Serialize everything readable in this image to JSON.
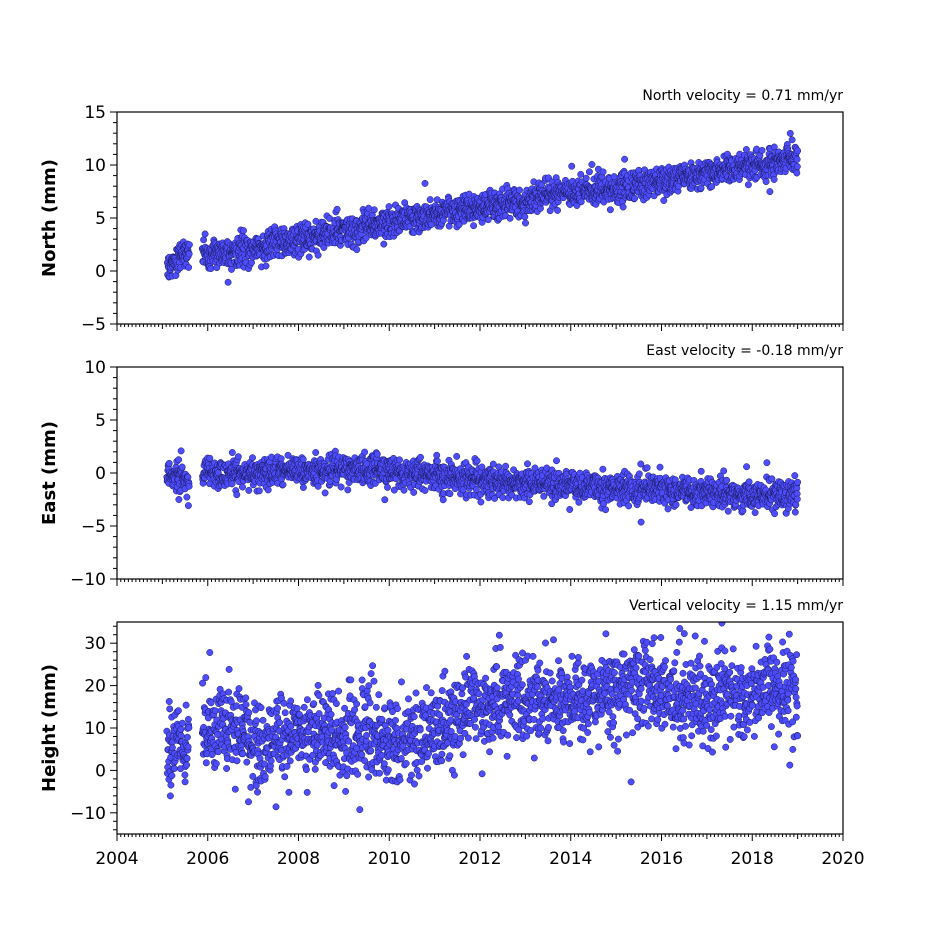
{
  "chart_data": [
    {
      "type": "scatter",
      "title": "North velocity = 0.71 mm/yr",
      "ylabel": "North (mm)",
      "xlim": [
        2004,
        2020
      ],
      "ylim": [
        -5,
        15
      ],
      "yticks": [
        -5,
        0,
        5,
        10,
        15
      ],
      "xticks": [
        2004,
        2006,
        2008,
        2010,
        2012,
        2014,
        2016,
        2018,
        2020
      ],
      "xtick_labels_shown": false,
      "color": "#4d4dff",
      "series": [
        {
          "x": [
            2005.1,
            2005.3,
            2005.5,
            2006.0,
            2006.5,
            2007.0,
            2007.5,
            2008.0,
            2008.5,
            2009.0,
            2009.5,
            2010.0,
            2010.5,
            2011.0,
            2011.5,
            2012.0,
            2012.5,
            2013.0,
            2013.5,
            2014.0,
            2014.5,
            2015.0,
            2015.5,
            2016.0,
            2016.5,
            2017.0,
            2017.5,
            2018.0,
            2018.5,
            2019.0
          ],
          "y": [
            0.2,
            1.0,
            1.8,
            1.5,
            1.8,
            2.2,
            2.6,
            3.0,
            3.4,
            3.8,
            4.2,
            4.6,
            5.0,
            5.3,
            5.7,
            6.0,
            6.4,
            6.7,
            7.0,
            7.3,
            7.6,
            7.9,
            8.2,
            8.5,
            8.9,
            9.2,
            9.6,
            10.0,
            10.4,
            10.7
          ],
          "spread": 0.9
        }
      ]
    },
    {
      "type": "scatter",
      "title": "East velocity = -0.18 mm/yr",
      "ylabel": "East (mm)",
      "xlim": [
        2004,
        2020
      ],
      "ylim": [
        -10,
        10
      ],
      "yticks": [
        -10,
        -5,
        0,
        5,
        10
      ],
      "xticks": [
        2004,
        2006,
        2008,
        2010,
        2012,
        2014,
        2016,
        2018,
        2020
      ],
      "xtick_labels_shown": false,
      "color": "#4d4dff",
      "series": [
        {
          "x": [
            2005.1,
            2005.3,
            2005.5,
            2006.0,
            2006.5,
            2007.0,
            2007.5,
            2008.0,
            2008.5,
            2009.0,
            2009.5,
            2010.0,
            2010.5,
            2011.0,
            2011.5,
            2012.0,
            2012.5,
            2013.0,
            2013.5,
            2014.0,
            2014.5,
            2015.0,
            2015.5,
            2016.0,
            2016.5,
            2017.0,
            2017.5,
            2018.0,
            2018.5,
            2019.0
          ],
          "y": [
            -0.2,
            -0.3,
            -0.4,
            0.0,
            0.0,
            0.0,
            0.1,
            0.2,
            0.2,
            0.3,
            0.3,
            0.2,
            0.0,
            -0.2,
            -0.4,
            -0.6,
            -0.8,
            -0.9,
            -1.0,
            -1.2,
            -1.3,
            -1.4,
            -1.5,
            -1.6,
            -1.7,
            -1.8,
            -1.9,
            -2.0,
            -2.0,
            -1.9
          ],
          "spread": 0.9
        }
      ]
    },
    {
      "type": "scatter",
      "title": "Vertical velocity = 1.15 mm/yr",
      "ylabel": "Height (mm)",
      "xlim": [
        2004,
        2020
      ],
      "ylim": [
        -15,
        35
      ],
      "yticks": [
        -10,
        0,
        10,
        20,
        30
      ],
      "xticks": [
        2004,
        2006,
        2008,
        2010,
        2012,
        2014,
        2016,
        2018,
        2020
      ],
      "xtick_labels_shown": true,
      "color": "#4d4dff",
      "series": [
        {
          "x": [
            2005.1,
            2005.3,
            2005.5,
            2006.0,
            2006.5,
            2007.0,
            2007.5,
            2008.0,
            2008.5,
            2009.0,
            2009.5,
            2010.0,
            2010.5,
            2011.0,
            2011.5,
            2012.0,
            2012.5,
            2013.0,
            2013.5,
            2014.0,
            2014.5,
            2015.0,
            2015.5,
            2016.0,
            2016.5,
            2017.0,
            2017.5,
            2018.0,
            2018.5,
            2019.0
          ],
          "y": [
            3,
            5,
            6,
            10,
            10,
            6,
            7,
            9,
            9,
            8,
            8,
            6,
            7,
            9,
            13,
            15,
            17,
            17,
            17,
            17,
            18,
            19,
            20,
            19,
            17,
            17,
            18,
            17,
            20,
            20
          ],
          "spread": 6.5
        }
      ]
    }
  ]
}
